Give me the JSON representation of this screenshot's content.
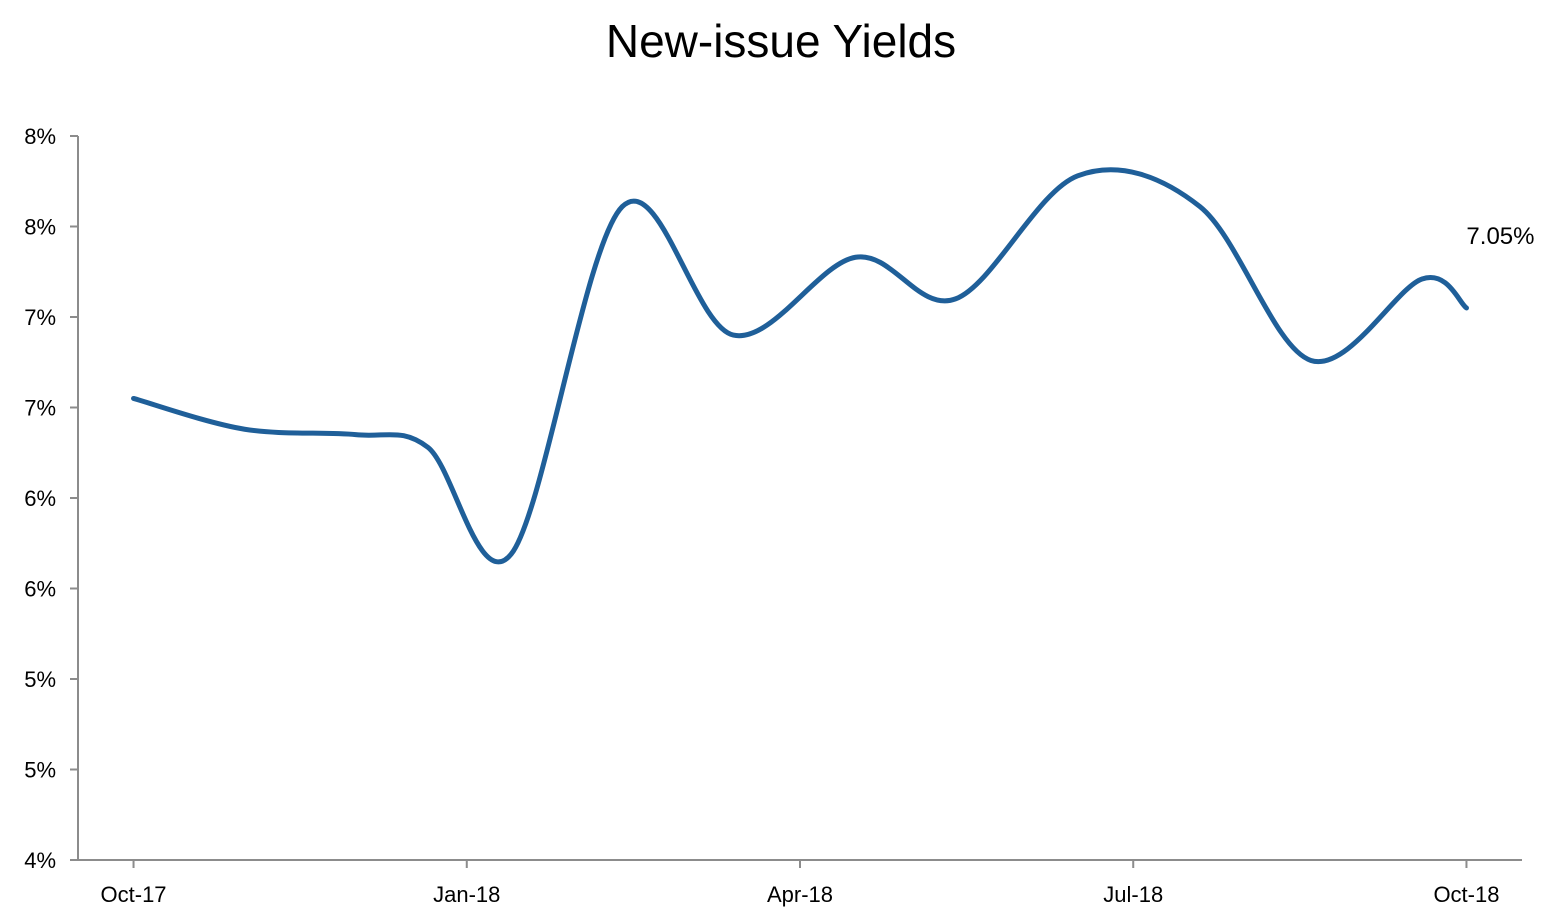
{
  "chart_data": {
    "type": "line",
    "title": "New-issue Yields",
    "xlabel": "",
    "ylabel": "",
    "x_tick_labels": [
      "Oct-17",
      "Jan-18",
      "Apr-18",
      "Jul-18",
      "Oct-18"
    ],
    "x_tick_values": [
      0,
      3,
      6,
      9,
      12
    ],
    "y_tick_labels": [
      "4%",
      "5%",
      "5%",
      "6%",
      "6%",
      "7%",
      "7%",
      "8%",
      "8%"
    ],
    "y_tick_values": [
      4.0,
      4.5,
      5.0,
      5.5,
      6.0,
      6.5,
      7.0,
      7.5,
      8.0
    ],
    "ylim": [
      4.0,
      8.0
    ],
    "xlim": [
      -0.5,
      12.5
    ],
    "grid": false,
    "legend": "none",
    "series": [
      {
        "color": "#1f5f99",
        "x": [
          0,
          1,
          2,
          2.65,
          3.4,
          4.4,
          5.4,
          6.5,
          7.4,
          8.5,
          9.6,
          10.6,
          11.6,
          12
        ],
        "values": [
          6.55,
          6.38,
          6.35,
          6.28,
          5.69,
          7.61,
          6.9,
          7.33,
          7.1,
          7.78,
          7.61,
          6.76,
          7.21,
          7.05
        ]
      }
    ],
    "data_labels": [
      {
        "series": 0,
        "index": 13,
        "text": "7.05%"
      }
    ]
  }
}
